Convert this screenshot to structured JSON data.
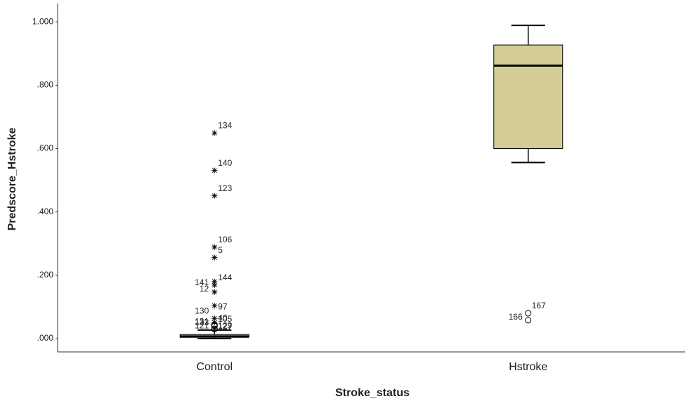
{
  "chart_data": {
    "type": "box",
    "x_label": "Stroke_status",
    "y_label": "Predscore_Hstroke",
    "categories": [
      "Control",
      "Hstroke"
    ],
    "color": "#d4ce96",
    "ylim": [
      -0.042,
      1.058
    ],
    "yticks": [
      {
        "value": 0,
        "label": ".000"
      },
      {
        "value": 0.2,
        "label": ".200"
      },
      {
        "value": 0.4,
        "label": ".400"
      },
      {
        "value": 0.6,
        "label": ".600"
      },
      {
        "value": 0.8,
        "label": ".800"
      },
      {
        "value": 1,
        "label": "1.000"
      }
    ],
    "boxes": [
      {
        "min": 0,
        "q1": 0.004,
        "median": 0.007,
        "q3": 0.013,
        "max": 0.027,
        "outliers": [
          {
            "value": 0.649,
            "label": "134",
            "kind": "extreme"
          },
          {
            "value": 0.531,
            "label": "140",
            "kind": "extreme"
          },
          {
            "value": 0.451,
            "label": "123",
            "kind": "extreme"
          },
          {
            "value": 0.289,
            "label": "106",
            "kind": "extreme"
          },
          {
            "value": 0.256,
            "label": "5",
            "kind": "extreme"
          },
          {
            "value": 0.18,
            "label": "141",
            "kind": "extreme"
          },
          {
            "value": 0.169,
            "label": "144",
            "kind": "extreme"
          },
          {
            "value": 0.147,
            "label": "12",
            "kind": "extreme"
          },
          {
            "value": 0.104,
            "label": "97",
            "kind": "extreme"
          },
          {
            "value": 0.064,
            "label": "130",
            "kind": "extreme"
          },
          {
            "value": 0.051,
            "label": "105",
            "kind": "extreme"
          },
          {
            "value": 0.044,
            "label": "121",
            "kind": "outlier"
          },
          {
            "value": 0.042,
            "label": "40",
            "kind": "outlier"
          },
          {
            "value": 0.04,
            "label": "133",
            "kind": "outlier"
          },
          {
            "value": 0.041,
            "label": "127",
            "kind": "outlier"
          },
          {
            "value": 0.031,
            "label": "131",
            "kind": "outlier"
          },
          {
            "value": 0.03,
            "label": "129",
            "kind": "outlier"
          }
        ]
      },
      {
        "min": 0.556,
        "q1": 0.6,
        "median": 0.862,
        "q3": 0.927,
        "max": 0.989,
        "outliers": [
          {
            "value": 0.08,
            "label": "167",
            "kind": "outlier"
          },
          {
            "value": 0.058,
            "label": "166",
            "kind": "outlier"
          }
        ]
      }
    ]
  }
}
